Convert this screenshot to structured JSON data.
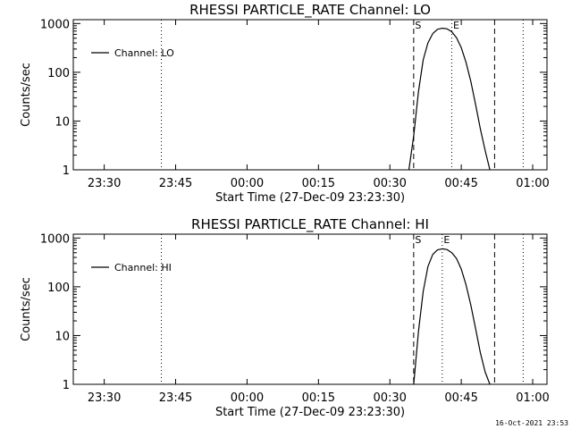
{
  "timestamp": "16-Oct-2021 23:53",
  "chart_data": [
    {
      "type": "line",
      "title": "RHESSI PARTICLE_RATE Channel: LO",
      "xlabel": "Start Time (27-Dec-09 23:23:30)",
      "ylabel": "Counts/sec",
      "y_scale": "log",
      "ylim": [
        1,
        1200
      ],
      "y_ticks": [
        {
          "value": 1,
          "label": "1"
        },
        {
          "value": 10,
          "label": "10"
        },
        {
          "value": 100,
          "label": "100"
        },
        {
          "value": 1000,
          "label": "1000"
        }
      ],
      "xlim": [
        "23:23:30",
        "01:03:00"
      ],
      "x_ticks": [
        {
          "value": "23:30",
          "label": "23:30"
        },
        {
          "value": "23:45",
          "label": "23:45"
        },
        {
          "value": "00:00",
          "label": "00:00"
        },
        {
          "value": "00:15",
          "label": "00:15"
        },
        {
          "value": "00:30",
          "label": "00:30"
        },
        {
          "value": "00:45",
          "label": "00:45"
        },
        {
          "value": "01:00",
          "label": "01:00"
        }
      ],
      "legend": {
        "label": "Channel: LO",
        "placement": "top-left"
      },
      "vlines": [
        {
          "x": "23:42",
          "style": "dotted",
          "label": ""
        },
        {
          "x": "00:35",
          "style": "dashed",
          "label": "S"
        },
        {
          "x": "00:43",
          "style": "dotted",
          "label": "E"
        },
        {
          "x": "00:52",
          "style": "dashed",
          "label": ""
        },
        {
          "x": "00:58",
          "style": "dotted",
          "label": ""
        }
      ],
      "series": [
        {
          "x": [
            "00:34",
            "00:35",
            "00:36",
            "00:37",
            "00:38",
            "00:39",
            "00:40",
            "00:41",
            "00:42",
            "00:43",
            "00:44",
            "00:45",
            "00:46",
            "00:47",
            "00:48",
            "00:49",
            "00:50",
            "00:51"
          ],
          "y": [
            1,
            5,
            40,
            180,
            400,
            620,
            760,
            800,
            780,
            680,
            510,
            320,
            160,
            65,
            22,
            7,
            2.5,
            1
          ]
        }
      ]
    },
    {
      "type": "line",
      "title": "RHESSI PARTICLE_RATE Channel: HI",
      "xlabel": "Start Time (27-Dec-09 23:23:30)",
      "ylabel": "Counts/sec",
      "y_scale": "log",
      "ylim": [
        1,
        1200
      ],
      "y_ticks": [
        {
          "value": 1,
          "label": "1"
        },
        {
          "value": 10,
          "label": "10"
        },
        {
          "value": 100,
          "label": "100"
        },
        {
          "value": 1000,
          "label": "1000"
        }
      ],
      "xlim": [
        "23:23:30",
        "01:03:00"
      ],
      "x_ticks": [
        {
          "value": "23:30",
          "label": "23:30"
        },
        {
          "value": "23:45",
          "label": "23:45"
        },
        {
          "value": "00:00",
          "label": "00:00"
        },
        {
          "value": "00:15",
          "label": "00:15"
        },
        {
          "value": "00:30",
          "label": "00:30"
        },
        {
          "value": "00:45",
          "label": "00:45"
        },
        {
          "value": "01:00",
          "label": "01:00"
        }
      ],
      "legend": {
        "label": "Channel: HI",
        "placement": "top-left"
      },
      "vlines": [
        {
          "x": "23:42",
          "style": "dotted",
          "label": ""
        },
        {
          "x": "00:35",
          "style": "dashed",
          "label": "S"
        },
        {
          "x": "00:41",
          "style": "dotted",
          "label": "E"
        },
        {
          "x": "00:52",
          "style": "dashed",
          "label": ""
        },
        {
          "x": "00:58",
          "style": "dotted",
          "label": ""
        }
      ],
      "series": [
        {
          "x": [
            "00:35",
            "00:36",
            "00:37",
            "00:38",
            "00:39",
            "00:40",
            "00:41",
            "00:42",
            "00:43",
            "00:44",
            "00:45",
            "00:46",
            "00:47",
            "00:48",
            "00:49",
            "00:50",
            "00:51"
          ],
          "y": [
            1,
            12,
            80,
            260,
            460,
            570,
            600,
            580,
            500,
            380,
            230,
            110,
            42,
            14,
            4.5,
            1.8,
            1
          ]
        }
      ]
    }
  ]
}
